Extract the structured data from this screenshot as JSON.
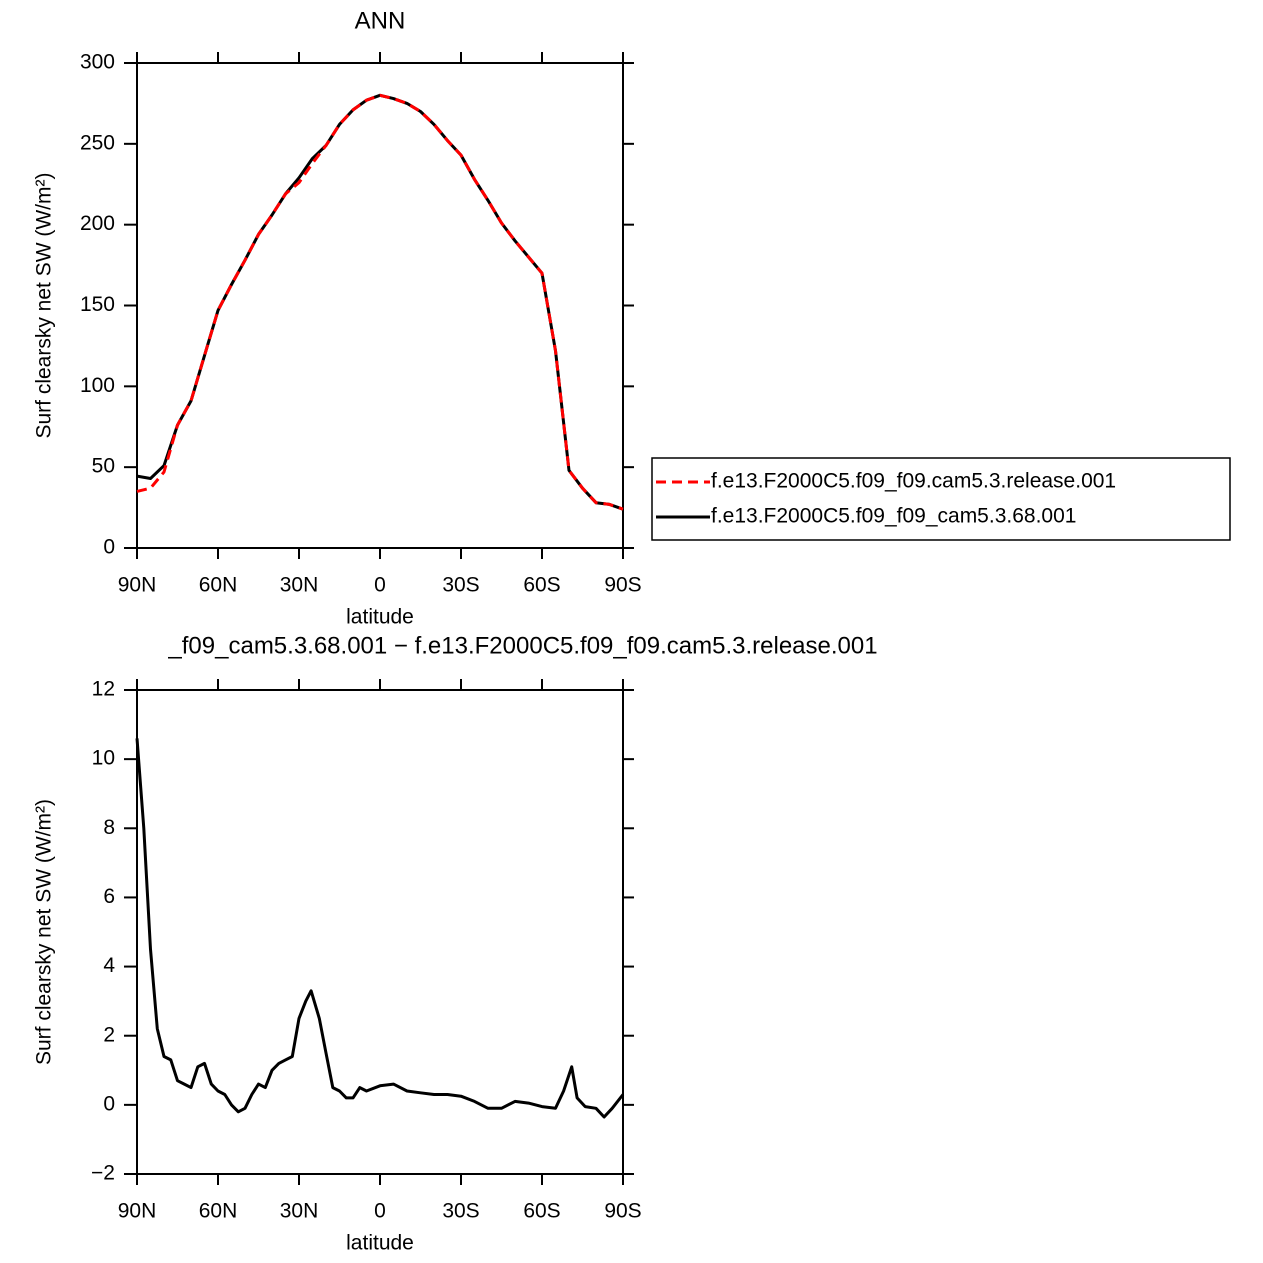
{
  "chart_data": [
    {
      "type": "line",
      "title": "ANN",
      "xlabel": "latitude",
      "ylabel": "Surf clearsky net SW (W/m²)",
      "x": [
        90,
        85,
        80,
        75,
        70,
        65,
        60,
        55,
        50,
        45,
        40,
        35,
        30,
        25,
        20,
        15,
        10,
        5,
        0,
        -5,
        -10,
        -15,
        -20,
        -25,
        -30,
        -35,
        -40,
        -45,
        -50,
        -55,
        -60,
        -65,
        -70,
        -75,
        -80,
        -85,
        -90
      ],
      "xlim": [
        90,
        -90
      ],
      "xticks": [
        {
          "value": 90,
          "label": "90N"
        },
        {
          "value": 60,
          "label": "60N"
        },
        {
          "value": 30,
          "label": "30N"
        },
        0,
        {
          "value": -30,
          "label": "30S"
        },
        {
          "value": -60,
          "label": "60S"
        },
        {
          "value": -90,
          "label": "90S"
        }
      ],
      "ylim": [
        0,
        300
      ],
      "yticks": [
        0,
        50,
        100,
        150,
        200,
        250,
        300
      ],
      "legend": "right",
      "series": [
        {
          "name": "f.e13.F2000C5.f09_f09.cam5.3.release.001",
          "color": "#ff0000",
          "line_style": "dashed",
          "values": [
            35,
            37,
            47,
            76,
            91,
            119,
            147,
            163,
            178,
            194,
            206,
            219,
            226,
            238,
            249,
            262,
            271,
            277,
            280,
            278,
            275,
            270,
            262,
            252,
            243,
            228,
            215,
            201,
            190,
            180,
            170,
            122,
            48,
            37,
            28,
            27,
            24
          ]
        },
        {
          "name": "f.e13.F2000C5.f09_f09_cam5.3.68.001",
          "color": "#000000",
          "line_style": "solid",
          "values": [
            44.5,
            43,
            51,
            76,
            91,
            119,
            147,
            163,
            178,
            194,
            206,
            219,
            229,
            241,
            249,
            262,
            271,
            277,
            280,
            278,
            275,
            270,
            262,
            252,
            243,
            228,
            215,
            201,
            190,
            180,
            170,
            122,
            48,
            37,
            28,
            27,
            24
          ]
        }
      ]
    },
    {
      "type": "line",
      "title": "_f09_cam5.3.68.001 − f.e13.F2000C5.f09_f09.cam5.3.release.001",
      "xlabel": "latitude",
      "ylabel": "Surf clearsky net SW (W/m²)",
      "x": [
        90,
        87.5,
        85,
        82.5,
        80,
        77.5,
        75,
        72.5,
        70,
        67.5,
        65,
        62.5,
        60,
        57.5,
        55,
        52.5,
        50,
        47.5,
        45,
        42.5,
        40,
        37.5,
        35,
        32.5,
        30,
        27.5,
        25.5,
        22.5,
        20,
        17.5,
        15,
        12.5,
        10,
        7.5,
        5,
        0,
        -5,
        -10,
        -15,
        -20,
        -25,
        -30,
        -35,
        -40,
        -45,
        -50,
        -55,
        -60,
        -65,
        -68,
        -71,
        -73,
        -76,
        -80,
        -83,
        -86,
        -90
      ],
      "xlim": [
        90,
        -90
      ],
      "xticks": [
        {
          "value": 90,
          "label": "90N"
        },
        {
          "value": 60,
          "label": "60N"
        },
        {
          "value": 30,
          "label": "30N"
        },
        0,
        {
          "value": -30,
          "label": "30S"
        },
        {
          "value": -60,
          "label": "60S"
        },
        {
          "value": -90,
          "label": "90S"
        }
      ],
      "ylim": [
        -2,
        12
      ],
      "yticks": [
        {
          "value": -2,
          "label": "−2"
        },
        0,
        2,
        4,
        6,
        8,
        10,
        12
      ],
      "color": "#000000",
      "values": [
        10.6,
        8,
        4.5,
        2.2,
        1.4,
        1.3,
        0.7,
        0.6,
        0.5,
        1.1,
        1.2,
        0.6,
        0.4,
        0.3,
        0.0,
        -0.2,
        -0.1,
        0.3,
        0.6,
        0.5,
        1.0,
        1.2,
        1.3,
        1.4,
        2.5,
        3.0,
        3.3,
        2.5,
        1.5,
        0.5,
        0.4,
        0.2,
        0.2,
        0.5,
        0.4,
        0.55,
        0.6,
        0.4,
        0.35,
        0.3,
        0.3,
        0.25,
        0.1,
        -0.1,
        -0.1,
        0.1,
        0.05,
        -0.05,
        -0.1,
        0.4,
        1.1,
        0.2,
        -0.05,
        -0.1,
        -0.35,
        -0.1,
        0.3
      ]
    }
  ]
}
